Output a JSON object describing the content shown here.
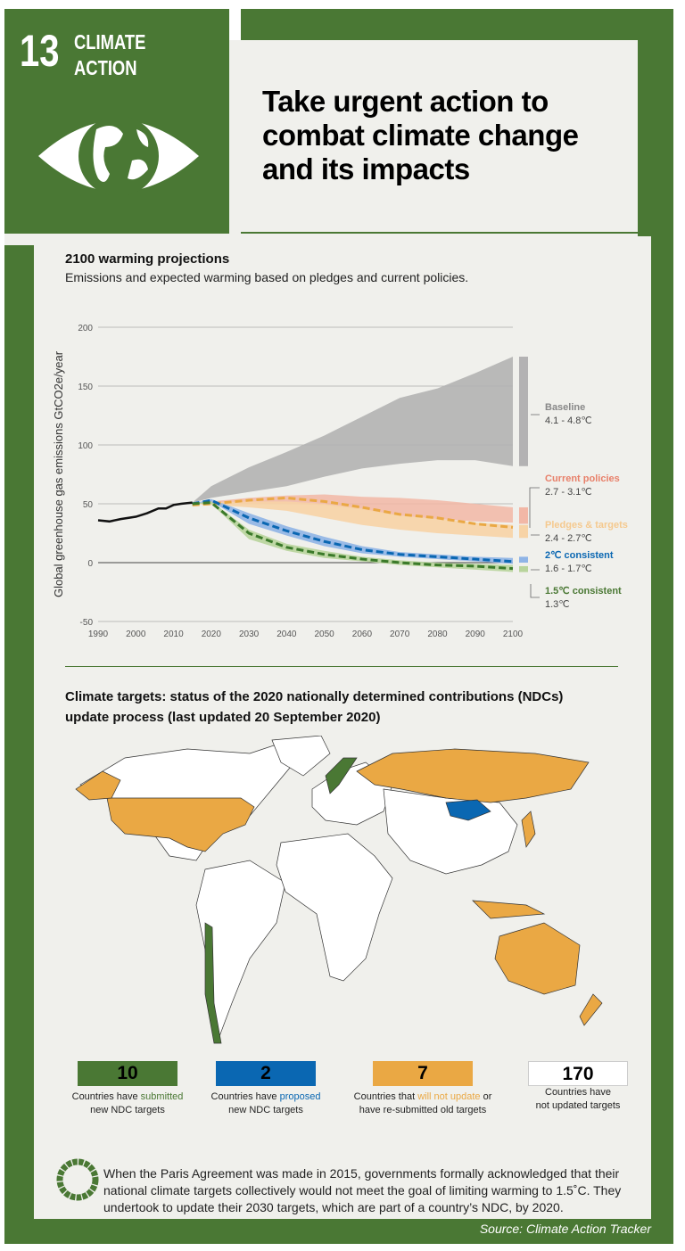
{
  "header": {
    "goal_number": "13",
    "goal_name_line1": "CLIMATE",
    "goal_name_line2": "ACTION",
    "headline": "Take urgent action to combat climate change and its impacts"
  },
  "colors": {
    "green": "#4a7834",
    "blue": "#0a67b2",
    "orange": "#eaa844",
    "current": "#e8806a",
    "pledges": "#f5c98e",
    "baseline": "#b3b2b3"
  },
  "chart_section": {
    "title": "2100 warming projections",
    "subtitle": "Emissions and expected warming based on pledges and current policies."
  },
  "chart_data": {
    "type": "area",
    "ylabel": "Global greenhouse gas emissions GtCO2e/year",
    "ylim": [
      -50,
      200
    ],
    "xlim": [
      1990,
      2100
    ],
    "yticks": [
      "200",
      "150",
      "100",
      "50",
      "0",
      "-50"
    ],
    "xticks": [
      "1990",
      "2000",
      "2010",
      "2020",
      "2030",
      "2040",
      "2050",
      "2060",
      "2070",
      "2080",
      "2090",
      "2100"
    ],
    "grid": true,
    "historical": {
      "x": [
        1990,
        1993,
        1996,
        2000,
        2003,
        2006,
        2008,
        2010,
        2012,
        2015
      ],
      "y": [
        36,
        35,
        37,
        39,
        42,
        46,
        46,
        49,
        50,
        51
      ]
    },
    "years": [
      2015,
      2020,
      2030,
      2040,
      2050,
      2060,
      2070,
      2080,
      2090,
      2100
    ],
    "series": [
      {
        "name": "Baseline",
        "range": "4.1 - 4.8℃",
        "upper": [
          51,
          65,
          81,
          94,
          108,
          124,
          140,
          148,
          161,
          175
        ],
        "lower": [
          51,
          55,
          60,
          65,
          73,
          80,
          84,
          87,
          87,
          82
        ]
      },
      {
        "name": "Current policies",
        "range": "2.7 - 3.1℃",
        "upper": [
          50,
          52,
          55,
          57,
          58,
          56,
          55,
          53,
          50,
          47
        ],
        "lower": [
          50,
          50,
          50,
          50,
          49,
          45,
          40,
          37,
          35,
          34
        ]
      },
      {
        "name": "Pledges & targets",
        "range": "2.4 - 2.7℃",
        "upper": [
          50,
          51,
          52,
          52,
          50,
          46,
          40,
          37,
          34,
          32
        ],
        "lower": [
          50,
          49,
          47,
          44,
          38,
          32,
          28,
          25,
          23,
          21
        ],
        "median": [
          49,
          50,
          53,
          55,
          52,
          47,
          41,
          38,
          33,
          30
        ]
      },
      {
        "name": "2℃ consistent",
        "range": "1.6 - 1.7℃",
        "upper": [
          50,
          54,
          42,
          31,
          22,
          14,
          9,
          7,
          5,
          4
        ],
        "lower": [
          50,
          52,
          33,
          23,
          14,
          8,
          5,
          3,
          1,
          -1
        ],
        "median": [
          50,
          53,
          38,
          27,
          18,
          11,
          7,
          5,
          3,
          1
        ]
      },
      {
        "name": "1.5℃ consistent",
        "range": "1.3℃",
        "upper": [
          50,
          52,
          28,
          16,
          10,
          5,
          2,
          0,
          -1,
          -2
        ],
        "lower": [
          50,
          50,
          20,
          10,
          4,
          1,
          -2,
          -4,
          -6,
          -8
        ],
        "median": [
          50,
          51,
          25,
          13,
          7,
          3,
          0,
          -2,
          -3,
          -5
        ]
      }
    ]
  },
  "map_section": {
    "title": "Climate targets: status of the 2020 nationally determined contributions (NDCs) update process (last updated 20 September 2020)"
  },
  "stats": [
    {
      "value": "10",
      "pre": "Countries have ",
      "hl": "submitted",
      "post": "",
      "line2": "new NDC targets",
      "color": "#4a7834",
      "hlcolor": "#4a7834"
    },
    {
      "value": "2",
      "pre": "Countries have ",
      "hl": "proposed",
      "post": "",
      "line2": "new NDC targets",
      "color": "#0a67b2",
      "hlcolor": "#0a67b2"
    },
    {
      "value": "7",
      "pre": "Countries that ",
      "hl": "will not update",
      "post": " or",
      "line2": "have re-submitted old targets",
      "color": "#eaa844",
      "hlcolor": "#eaa844"
    },
    {
      "value": "170",
      "pre": "Countries have",
      "hl": "",
      "post": "",
      "line2": "not updated targets",
      "color": "#ffffff",
      "hlcolor": "#222"
    }
  ],
  "note": "When the Paris Agreement was made in 2015, governments formally acknowledged that their national climate targets collectively would not meet the goal of limiting warming to 1.5˚C. They undertook to update their 2030 targets, which are part of a country’s NDC, by 2020.",
  "source": "Source: Climate Action Tracker"
}
